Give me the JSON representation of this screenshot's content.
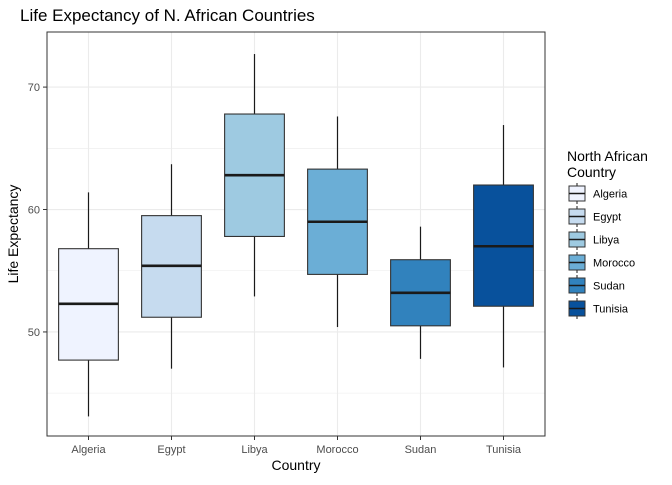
{
  "chart_data": {
    "type": "boxplot",
    "title": "Life Expectancy of N. African Countries",
    "xlabel": "Country",
    "ylabel": "Life Expectancy",
    "ylim": [
      41.5,
      74.5
    ],
    "yticks": [
      50,
      60,
      70
    ],
    "ytick_labels": [
      "50",
      "60",
      "70"
    ],
    "grid": true,
    "legend_position": "right",
    "legend_title": [
      "North African",
      "Country"
    ],
    "categories": [
      "Algeria",
      "Egypt",
      "Libya",
      "Morocco",
      "Sudan",
      "Tunisia"
    ],
    "colors": [
      "#eff3ff",
      "#c6dbef",
      "#9ecae1",
      "#6baed6",
      "#3182bd",
      "#08519c"
    ],
    "boxes": [
      {
        "name": "Algeria",
        "min": 43.1,
        "q1": 47.7,
        "median": 52.3,
        "q3": 56.8,
        "max": 61.4
      },
      {
        "name": "Egypt",
        "min": 47.0,
        "q1": 51.2,
        "median": 55.4,
        "q3": 59.5,
        "max": 63.7
      },
      {
        "name": "Libya",
        "min": 52.9,
        "q1": 57.8,
        "median": 62.8,
        "q3": 67.8,
        "max": 72.7
      },
      {
        "name": "Morocco",
        "min": 50.4,
        "q1": 54.7,
        "median": 59.0,
        "q3": 63.3,
        "max": 67.6
      },
      {
        "name": "Sudan",
        "min": 47.8,
        "q1": 50.5,
        "median": 53.2,
        "q3": 55.9,
        "max": 58.6
      },
      {
        "name": "Tunisia",
        "min": 47.1,
        "q1": 52.1,
        "median": 57.0,
        "q3": 62.0,
        "max": 66.9
      }
    ]
  }
}
